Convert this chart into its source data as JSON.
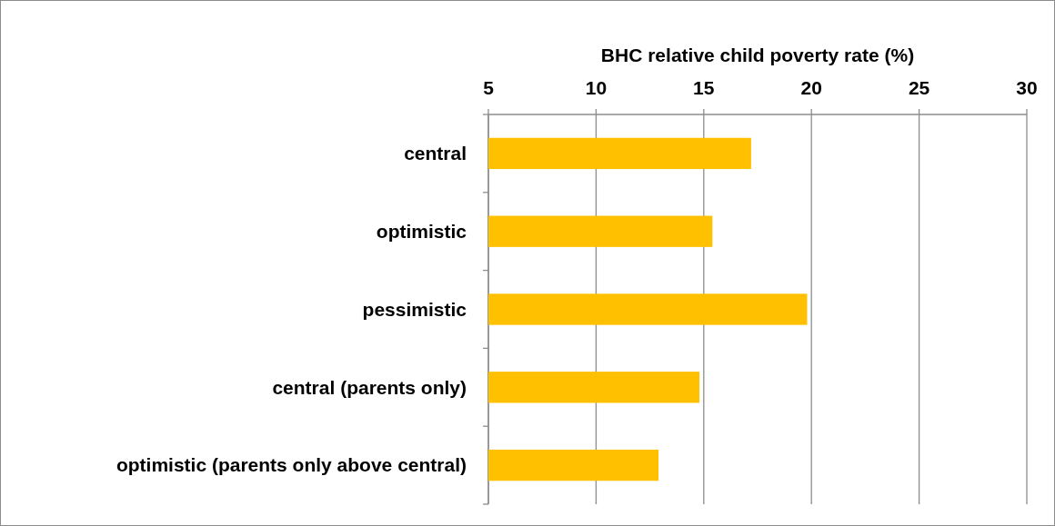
{
  "chart_data": {
    "type": "bar",
    "orientation": "horizontal",
    "xlabel": "BHC relative child poverty rate (%)",
    "categories": [
      "central",
      "optimistic",
      "pessimistic",
      "central (parents only)",
      "optimistic (parents only above central)"
    ],
    "values": [
      17.2,
      15.4,
      19.8,
      14.8,
      12.9
    ],
    "color": "#ffc000",
    "xlim": [
      5,
      30
    ],
    "xticks": [
      5,
      10,
      15,
      20,
      25,
      30
    ],
    "grid": "x"
  }
}
